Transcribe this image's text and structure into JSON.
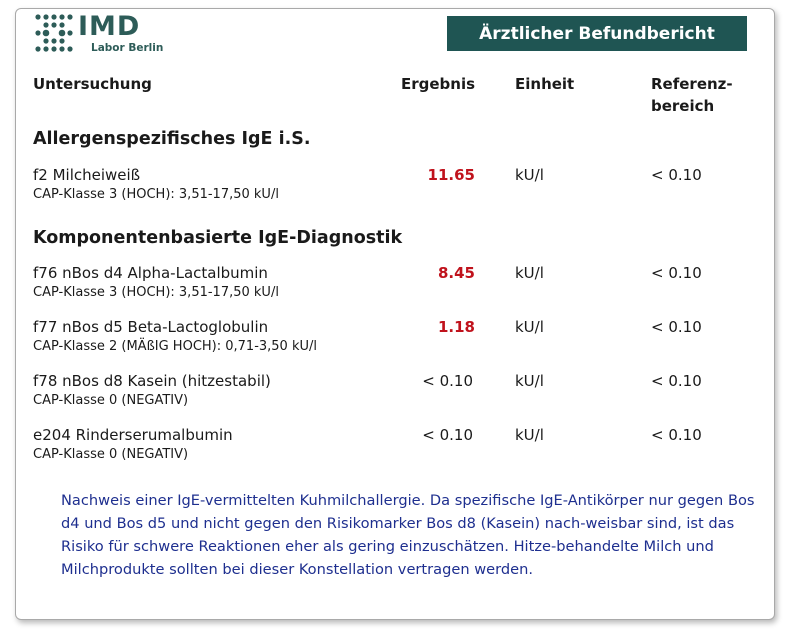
{
  "logo": {
    "text": "IMD",
    "subtitle": "Labor Berlin",
    "color": "#2d5c58"
  },
  "header": {
    "title": "Ärztlicher Befundbericht",
    "bar_color": "#1f5553"
  },
  "columns": {
    "test": "Untersuchung",
    "result": "Ergebnis",
    "unit": "Einheit",
    "reference": "Referenz-\nbereich"
  },
  "sections": [
    {
      "title": "Allergenspezifisches IgE i.S."
    },
    {
      "title": "Komponentenbasierte IgE-Diagnostik"
    }
  ],
  "rows": [
    {
      "name": "f2 Milcheiweiß",
      "detail": "CAP-Klasse 3 (HOCH): 3,51-17,50 kU/l",
      "result": "11.65",
      "flag": "high",
      "unit": "kU/l",
      "reference": "< 0.10"
    },
    {
      "name": "f76 nBos d4 Alpha-Lactalbumin",
      "detail": "CAP-Klasse 3 (HOCH): 3,51-17,50 kU/l",
      "result": "8.45",
      "flag": "high",
      "unit": "kU/l",
      "reference": "< 0.10"
    },
    {
      "name": "f77 nBos d5 Beta-Lactoglobulin",
      "detail": "CAP-Klasse 2 (MÄßIG HOCH): 0,71-3,50 kU/l",
      "result": "1.18",
      "flag": "high",
      "unit": "kU/l",
      "reference": "< 0.10"
    },
    {
      "name": "f78 nBos d8 Kasein (hitzestabil)",
      "detail": "CAP-Klasse 0 (NEGATIV)",
      "result": "< 0.10",
      "flag": "normal",
      "unit": "kU/l",
      "reference": "< 0.10"
    },
    {
      "name": "e204 Rinderserumalbumin",
      "detail": "CAP-Klasse 0 (NEGATIV)",
      "result": "< 0.10",
      "flag": "normal",
      "unit": "kU/l",
      "reference": "< 0.10"
    }
  ],
  "note": {
    "text": "Nachweis einer IgE-vermittelten Kuhmilchallergie. Da spezifische IgE-Antikörper nur gegen Bos d4 und Bos d5 und nicht gegen den Risikomarker Bos d8 (Kasein) nach-weisbar sind, ist das Risiko für schwere Reaktionen eher als gering einzuschätzen. Hitze-behandelte Milch und Milchprodukte sollten bei dieser Konstellation vertragen werden.",
    "color": "#1e2f8f"
  },
  "colors": {
    "high_value": "#c0121c"
  }
}
